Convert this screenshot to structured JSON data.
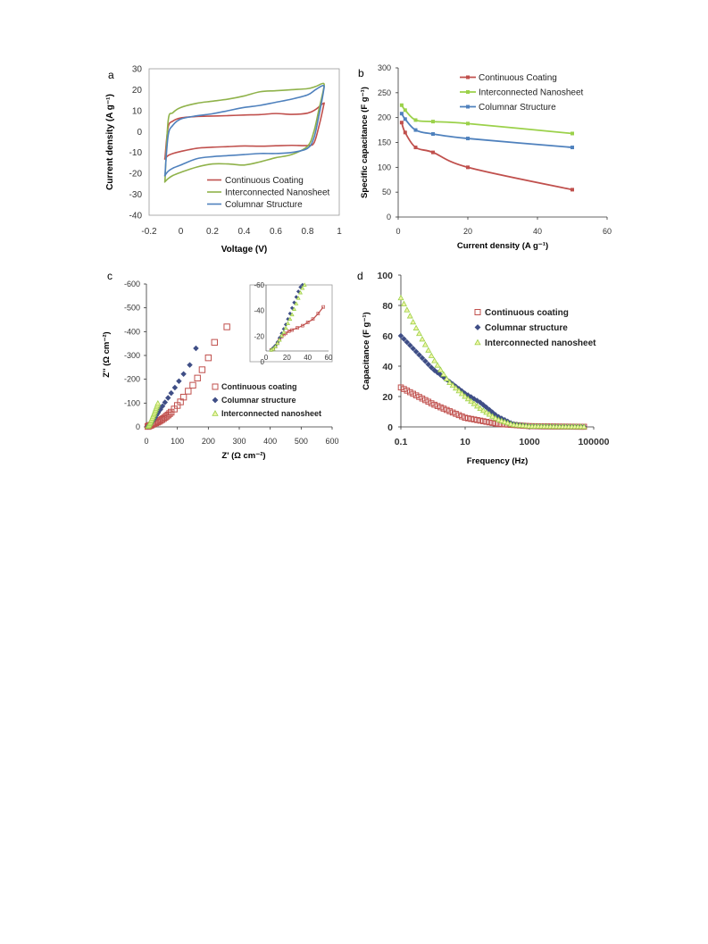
{
  "colors": {
    "continuous": "#c0504d",
    "nanosheet": "#8fb24a",
    "columnar": "#4f81bd",
    "nanosheet_light": "#9bd14a",
    "columnar_dark": "#3f4e86",
    "axis": "#333333",
    "tick_text": "#333333",
    "frame": "#9a9a9a"
  },
  "chart_data": [
    {
      "panel": "a",
      "type": "line",
      "xlabel": "Voltage (V)",
      "ylabel": "Current density (A g⁻¹)",
      "xlim": [
        -0.2,
        1.0
      ],
      "ylim": [
        -40,
        30
      ],
      "xticks": [
        "-0.2",
        "0",
        "0.2",
        "0.4",
        "0.6",
        "0.8",
        "1"
      ],
      "yticks": [
        "30",
        "20",
        "10",
        "0",
        "-10",
        "-20",
        "-30",
        "-40"
      ],
      "legend_position": "bottom-right",
      "series": [
        {
          "name": "Continuous Coating",
          "color_key": "continuous",
          "x": [
            -0.1,
            -0.08,
            -0.05,
            0.0,
            0.1,
            0.2,
            0.3,
            0.4,
            0.5,
            0.6,
            0.7,
            0.8,
            0.85,
            0.9,
            0.9,
            0.87,
            0.84,
            0.8,
            0.7,
            0.6,
            0.5,
            0.4,
            0.3,
            0.2,
            0.1,
            0.0,
            -0.05,
            -0.08,
            -0.1
          ],
          "y": [
            -13,
            2,
            5,
            6.5,
            7.2,
            7.4,
            7.6,
            7.9,
            8.1,
            8.6,
            8.2,
            8.8,
            10.5,
            13.5,
            12,
            2,
            -5.5,
            -6.7,
            -6.6,
            -6.8,
            -7,
            -6.9,
            -7.2,
            -7.5,
            -8,
            -9.5,
            -10.5,
            -11.5,
            -13
          ]
        },
        {
          "name": "Interconnected Nanosheet",
          "color_key": "nanosheet",
          "x": [
            -0.1,
            -0.08,
            -0.05,
            0.0,
            0.1,
            0.2,
            0.3,
            0.4,
            0.5,
            0.6,
            0.7,
            0.8,
            0.85,
            0.9,
            0.9,
            0.87,
            0.84,
            0.8,
            0.7,
            0.6,
            0.5,
            0.4,
            0.3,
            0.2,
            0.1,
            0.0,
            -0.05,
            -0.08,
            -0.1
          ],
          "y": [
            -24,
            5,
            9,
            11.5,
            13.5,
            14.5,
            15.5,
            17,
            19,
            19.5,
            20,
            20.5,
            21.5,
            23,
            20,
            10,
            0,
            -7,
            -11,
            -12.5,
            -14.5,
            -16,
            -15.5,
            -15.5,
            -17,
            -19.5,
            -21,
            -22.5,
            -24
          ]
        },
        {
          "name": "Columnar Structure",
          "color_key": "columnar",
          "x": [
            -0.1,
            -0.08,
            -0.05,
            0.0,
            0.1,
            0.2,
            0.3,
            0.4,
            0.5,
            0.6,
            0.7,
            0.8,
            0.85,
            0.9,
            0.9,
            0.87,
            0.84,
            0.8,
            0.7,
            0.6,
            0.5,
            0.4,
            0.3,
            0.2,
            0.1,
            0.0,
            -0.05,
            -0.08,
            -0.1
          ],
          "y": [
            -21,
            -2,
            3,
            6,
            7.5,
            8.5,
            10,
            11.5,
            12.5,
            14,
            15.5,
            17.5,
            20,
            22,
            19,
            7,
            -3,
            -8,
            -10,
            -10.5,
            -10.5,
            -11,
            -11.5,
            -12,
            -13,
            -16,
            -17.5,
            -19,
            -21
          ]
        }
      ]
    },
    {
      "panel": "b",
      "type": "line",
      "xlabel": "Current density (A g⁻¹)",
      "ylabel": "Specific capacitance (F g⁻¹)",
      "xlim": [
        0,
        60
      ],
      "ylim": [
        0,
        300
      ],
      "xticks": [
        "0",
        "20",
        "40",
        "60"
      ],
      "yticks": [
        "300",
        "250",
        "200",
        "150",
        "100",
        "50",
        "0"
      ],
      "legend_position": "top-right",
      "series": [
        {
          "name": "Continuous Coating",
          "color_key": "continuous",
          "x": [
            1,
            2,
            5,
            10,
            20,
            50
          ],
          "y": [
            190,
            170,
            140,
            130,
            100,
            55
          ]
        },
        {
          "name": "Interconnected Nanosheet",
          "color_key": "nanosheet_light",
          "x": [
            1,
            2,
            5,
            10,
            20,
            50
          ],
          "y": [
            225,
            215,
            195,
            192,
            188,
            168
          ]
        },
        {
          "name": "Columnar Structure",
          "color_key": "columnar",
          "x": [
            1,
            2,
            5,
            10,
            20,
            50
          ],
          "y": [
            208,
            197,
            175,
            167,
            158,
            140
          ]
        }
      ]
    },
    {
      "panel": "c",
      "type": "scatter",
      "xlabel": "Z' (Ω cm⁻²)",
      "ylabel": "Z'' (Ω cm⁻²)",
      "xlim": [
        0,
        600
      ],
      "ylim": [
        0,
        -600
      ],
      "xticks": [
        "0",
        "100",
        "200",
        "300",
        "400",
        "500",
        "600"
      ],
      "yticks": [
        "-600",
        "-500",
        "-400",
        "-300",
        "-200",
        "-100",
        "0"
      ],
      "legend_position": "bottom-right",
      "series": [
        {
          "name": "Continuous coating",
          "color_key": "continuous",
          "marker": "square",
          "x": [
            5,
            8,
            12,
            16,
            20,
            25,
            30,
            35,
            40,
            45,
            50,
            55,
            60,
            65,
            70,
            75,
            80,
            90,
            100,
            110,
            120,
            135,
            150,
            165,
            180,
            200,
            220,
            260
          ],
          "y": [
            -2,
            -4,
            -6,
            -8,
            -11,
            -14,
            -17,
            -20,
            -23,
            -27,
            -31,
            -35,
            -40,
            -45,
            -50,
            -56,
            -62,
            -75,
            -90,
            -105,
            -125,
            -150,
            -175,
            -205,
            -240,
            -290,
            -355,
            -420
          ]
        },
        {
          "name": "Columnar structure",
          "color_key": "columnar_dark",
          "marker": "diamond",
          "x": [
            5,
            8,
            11,
            14,
            17,
            20,
            24,
            28,
            33,
            38,
            45,
            52,
            60,
            70,
            80,
            92,
            105,
            120,
            140,
            160
          ],
          "y": [
            -2,
            -5,
            -9,
            -14,
            -19,
            -25,
            -32,
            -40,
            -50,
            -60,
            -73,
            -87,
            -103,
            -122,
            -142,
            -165,
            -192,
            -222,
            -260,
            -330
          ]
        },
        {
          "name": "Interconnected nanosheet",
          "color_key": "nanosheet_light",
          "marker": "triangle",
          "x": [
            5,
            7,
            9,
            11,
            13,
            15,
            17,
            19,
            21,
            23,
            25,
            27,
            29,
            31,
            33,
            35,
            37
          ],
          "y": [
            -2,
            -5,
            -9,
            -14,
            -19,
            -25,
            -31,
            -37,
            -43,
            -50,
            -56,
            -63,
            -70,
            -77,
            -84,
            -91,
            -99
          ]
        }
      ],
      "inset": {
        "xlim": [
          0,
          60
        ],
        "ylim": [
          0,
          -60
        ],
        "xticks": [
          "0",
          "20",
          "40",
          "60"
        ],
        "yticks": [
          "-60",
          "-40",
          "-20",
          "0"
        ],
        "series": [
          {
            "color_key": "continuous",
            "marker": "line",
            "x": [
              5,
              7,
              9,
              11,
              13,
              15,
              17,
              19,
              22,
              25,
              30,
              35,
              40,
              45,
              50,
              55
            ],
            "y": [
              -1,
              -2,
              -4,
              -7,
              -10,
              -13,
              -15,
              -16,
              -18,
              -19,
              -21,
              -23,
              -26,
              -29,
              -34,
              -40
            ]
          },
          {
            "color_key": "columnar_dark",
            "marker": "diamond",
            "x": [
              5,
              7,
              9,
              11,
              13,
              15,
              17,
              19,
              21,
              23,
              25,
              27,
              29,
              31,
              33,
              35
            ],
            "y": [
              -1,
              -3,
              -5,
              -8,
              -12,
              -16,
              -20,
              -24,
              -29,
              -34,
              -39,
              -44,
              -49,
              -54,
              -58,
              -60
            ]
          },
          {
            "color_key": "nanosheet_light",
            "marker": "triangle",
            "x": [
              5,
              7,
              9,
              11,
              13,
              15,
              17,
              19,
              21,
              23,
              25,
              27,
              29,
              31,
              33,
              35,
              37
            ],
            "y": [
              -1,
              -2,
              -4,
              -7,
              -10,
              -14,
              -17,
              -21,
              -25,
              -29,
              -33,
              -38,
              -43,
              -48,
              -53,
              -57,
              -60
            ]
          }
        ]
      }
    },
    {
      "panel": "d",
      "type": "scatter",
      "xlabel": "Frequency (Hz)",
      "ylabel": "Capacitance (F g⁻¹)",
      "xscale": "log",
      "xlim": [
        0.1,
        100000
      ],
      "ylim": [
        0,
        100
      ],
      "xticks": [
        "0.1",
        "10",
        "1000",
        "100000"
      ],
      "yticks": [
        "100",
        "80",
        "60",
        "40",
        "20",
        "0"
      ],
      "legend_position": "top-right",
      "series": [
        {
          "name": "Continuous coating",
          "color_key": "continuous",
          "marker": "square",
          "x": [
            0.1,
            1,
            10,
            100,
            1000,
            10000,
            50000
          ],
          "y": [
            26,
            15,
            6,
            2,
            0.5,
            0.2,
            0.1
          ]
        },
        {
          "name": "Columnar structure",
          "color_key": "columnar_dark",
          "marker": "diamond",
          "x": [
            0.1,
            1,
            10,
            30,
            100,
            300,
            1000,
            10000,
            50000
          ],
          "y": [
            60,
            38,
            22,
            16,
            7,
            2,
            0.5,
            0.2,
            0.1
          ]
        },
        {
          "name": "Interconnected nanosheet",
          "color_key": "nanosheet_light",
          "marker": "triangle",
          "x": [
            0.1,
            0.3,
            1,
            3,
            10,
            30,
            100,
            300,
            1000,
            10000,
            50000
          ],
          "y": [
            85,
            65,
            45,
            30,
            20,
            12,
            5,
            1.5,
            0.5,
            0.2,
            0.1
          ]
        }
      ]
    }
  ],
  "panel_labels": [
    "a",
    "b",
    "c",
    "d"
  ]
}
